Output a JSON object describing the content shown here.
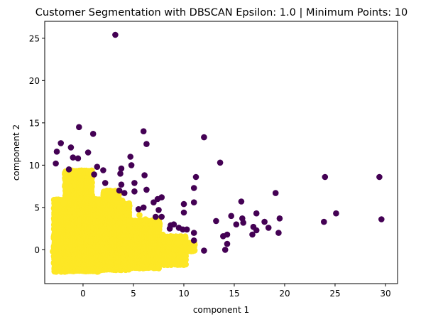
{
  "chart_data": {
    "type": "scatter",
    "title": "Customer Segmentation with DBSCAN Epsilon: 1.0 | Minimum Points: 10",
    "xlabel": "component 1",
    "ylabel": "component 2",
    "xlim": [
      -3.8,
      31.2
    ],
    "ylim": [
      -4.0,
      27.0
    ],
    "xticks": [
      0,
      5,
      10,
      15,
      20,
      25,
      30
    ],
    "yticks": [
      0,
      5,
      10,
      15,
      20,
      25
    ],
    "grid": false,
    "legend": "none",
    "colors": {
      "noise": "#440154",
      "cluster": "#fde725"
    },
    "series": [
      {
        "cluster": -1,
        "points": [
          [
            3.2,
            25.4
          ],
          [
            -0.4,
            14.5
          ],
          [
            6.0,
            14.0
          ],
          [
            12.0,
            13.3
          ],
          [
            1.0,
            13.7
          ],
          [
            -2.2,
            12.6
          ],
          [
            -1.2,
            12.1
          ],
          [
            6.3,
            12.5
          ],
          [
            -2.6,
            11.6
          ],
          [
            0.5,
            11.5
          ],
          [
            4.7,
            11.0
          ],
          [
            -1.0,
            10.9
          ],
          [
            -0.5,
            10.8
          ],
          [
            -2.7,
            10.2
          ],
          [
            13.6,
            10.3
          ],
          [
            4.8,
            10.0
          ],
          [
            1.4,
            9.8
          ],
          [
            2.0,
            9.4
          ],
          [
            3.8,
            9.6
          ],
          [
            -1.4,
            9.5
          ],
          [
            1.1,
            8.9
          ],
          [
            3.7,
            9.0
          ],
          [
            6.1,
            8.8
          ],
          [
            11.2,
            8.6
          ],
          [
            24.0,
            8.6
          ],
          [
            29.4,
            8.6
          ],
          [
            2.2,
            7.9
          ],
          [
            3.8,
            7.7
          ],
          [
            5.1,
            7.9
          ],
          [
            3.6,
            7.0
          ],
          [
            4.1,
            6.7
          ],
          [
            5.1,
            6.9
          ],
          [
            6.3,
            7.1
          ],
          [
            11.0,
            7.3
          ],
          [
            7.8,
            6.2
          ],
          [
            7.4,
            6.0
          ],
          [
            19.1,
            6.7
          ],
          [
            7.0,
            5.6
          ],
          [
            11.0,
            5.6
          ],
          [
            15.7,
            5.7
          ],
          [
            10.0,
            5.4
          ],
          [
            5.5,
            4.8
          ],
          [
            6.0,
            5.0
          ],
          [
            7.5,
            4.7
          ],
          [
            10.0,
            4.4
          ],
          [
            14.7,
            4.0
          ],
          [
            17.2,
            4.3
          ],
          [
            25.1,
            4.3
          ],
          [
            15.8,
            3.7
          ],
          [
            19.5,
            3.7
          ],
          [
            7.2,
            3.9
          ],
          [
            7.8,
            3.9
          ],
          [
            29.6,
            3.6
          ],
          [
            13.2,
            3.4
          ],
          [
            15.2,
            3.0
          ],
          [
            15.9,
            3.2
          ],
          [
            18.0,
            3.3
          ],
          [
            23.9,
            3.3
          ],
          [
            8.7,
            2.9
          ],
          [
            9.0,
            3.0
          ],
          [
            9.5,
            2.6
          ],
          [
            8.6,
            2.5
          ],
          [
            16.9,
            2.7
          ],
          [
            18.4,
            2.6
          ],
          [
            9.9,
            2.4
          ],
          [
            10.3,
            2.4
          ],
          [
            17.2,
            2.3
          ],
          [
            11.0,
            2.0
          ],
          [
            14.3,
            1.8
          ],
          [
            13.9,
            1.6
          ],
          [
            16.8,
            1.8
          ],
          [
            19.4,
            2.0
          ],
          [
            11.0,
            1.1
          ],
          [
            14.3,
            0.7
          ],
          [
            12.0,
            -0.1
          ],
          [
            14.1,
            0.0
          ]
        ]
      },
      {
        "cluster": 0,
        "regions": [
          {
            "x": [
              -2.9,
              1.6
            ],
            "y": [
              -2.6,
              6.0
            ]
          },
          {
            "x": [
              -1.8,
              0.9
            ],
            "y": [
              5.5,
              9.4
            ]
          },
          {
            "x": [
              1.6,
              4.6
            ],
            "y": [
              -2.4,
              5.5
            ]
          },
          {
            "x": [
              2.0,
              3.6
            ],
            "y": [
              5.0,
              7.0
            ]
          },
          {
            "x": [
              4.6,
              7.6
            ],
            "y": [
              -2.2,
              3.5
            ]
          },
          {
            "x": [
              7.6,
              10.2
            ],
            "y": [
              -1.8,
              1.6
            ]
          },
          {
            "x": [
              10.2,
              11.1
            ],
            "y": [
              -0.2,
              0.9
            ]
          }
        ],
        "points": [
          [
            11.0,
            0.6
          ],
          [
            10.6,
            0.2
          ],
          [
            10.9,
            -0.1
          ],
          [
            9.4,
            0.8
          ],
          [
            8.7,
            1.6
          ],
          [
            7.9,
            1.8
          ],
          [
            7.4,
            3.0
          ],
          [
            6.2,
            3.6
          ],
          [
            5.6,
            4.1
          ],
          [
            4.6,
            5.2
          ],
          [
            3.9,
            5.8
          ],
          [
            2.9,
            6.8
          ],
          [
            2.6,
            6.9
          ],
          [
            -0.3,
            9.3
          ],
          [
            -0.8,
            9.0
          ],
          [
            -1.9,
            5.5
          ],
          [
            -2.6,
            5.3
          ],
          [
            -2.9,
            1.5
          ],
          [
            -3.0,
            -0.2
          ],
          [
            -2.5,
            -1.3
          ]
        ]
      }
    ]
  }
}
